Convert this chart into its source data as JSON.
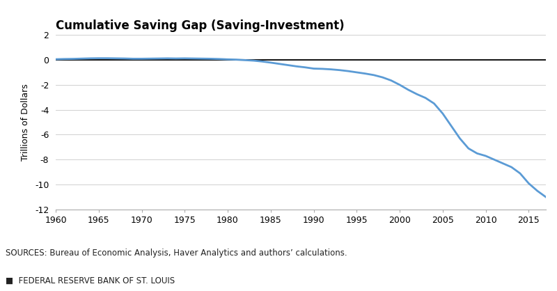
{
  "title": "Cumulative Saving Gap (Saving-Investment)",
  "ylabel": "Trillions of Dollars",
  "source_text": "SOURCES: Bureau of Economic Analysis, Haver Analytics and authors’ calculations.",
  "footer_text": "■  FEDERAL RESERVE BANK OF ST. LOUIS",
  "xlim": [
    1960,
    2017
  ],
  "ylim": [
    -12,
    2
  ],
  "yticks": [
    2,
    0,
    -2,
    -4,
    -6,
    -8,
    -10,
    -12
  ],
  "xticks": [
    1960,
    1965,
    1970,
    1975,
    1980,
    1985,
    1990,
    1995,
    2000,
    2005,
    2010,
    2015
  ],
  "line_color": "#5B9BD5",
  "zero_line_color": "#1a1a1a",
  "background_color": "#ffffff",
  "grid_color": "#d0d0d0",
  "years": [
    1960,
    1961,
    1962,
    1963,
    1964,
    1965,
    1966,
    1967,
    1968,
    1969,
    1970,
    1971,
    1972,
    1973,
    1974,
    1975,
    1976,
    1977,
    1978,
    1979,
    1980,
    1981,
    1982,
    1983,
    1984,
    1985,
    1986,
    1987,
    1988,
    1989,
    1990,
    1991,
    1992,
    1993,
    1994,
    1995,
    1996,
    1997,
    1998,
    1999,
    2000,
    2001,
    2002,
    2003,
    2004,
    2005,
    2006,
    2007,
    2008,
    2009,
    2010,
    2011,
    2012,
    2013,
    2014,
    2015,
    2016,
    2017
  ],
  "values": [
    0.05,
    0.07,
    0.08,
    0.1,
    0.12,
    0.13,
    0.13,
    0.12,
    0.11,
    0.09,
    0.09,
    0.1,
    0.11,
    0.12,
    0.11,
    0.12,
    0.11,
    0.1,
    0.09,
    0.07,
    0.04,
    0.02,
    -0.02,
    -0.06,
    -0.13,
    -0.22,
    -0.32,
    -0.42,
    -0.52,
    -0.6,
    -0.7,
    -0.72,
    -0.76,
    -0.82,
    -0.9,
    -1.0,
    -1.1,
    -1.22,
    -1.4,
    -1.65,
    -2.0,
    -2.4,
    -2.75,
    -3.05,
    -3.5,
    -4.3,
    -5.3,
    -6.3,
    -7.1,
    -7.5,
    -7.7,
    -8.0,
    -8.3,
    -8.6,
    -9.1,
    -9.9,
    -10.5,
    -11.0
  ]
}
